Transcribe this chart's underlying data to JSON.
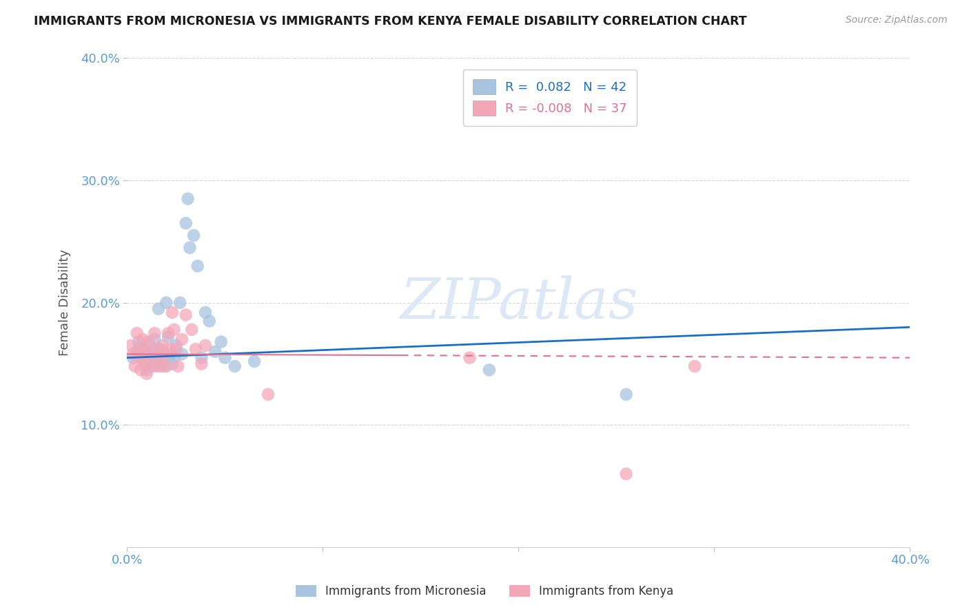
{
  "title": "IMMIGRANTS FROM MICRONESIA VS IMMIGRANTS FROM KENYA FEMALE DISABILITY CORRELATION CHART",
  "source_text": "Source: ZipAtlas.com",
  "ylabel": "Female Disability",
  "xlim": [
    0.0,
    0.4
  ],
  "ylim": [
    0.0,
    0.4
  ],
  "xticks": [
    0.0,
    0.1,
    0.2,
    0.3,
    0.4
  ],
  "yticks": [
    0.1,
    0.2,
    0.3,
    0.4
  ],
  "R_micronesia": 0.082,
  "N_micronesia": 42,
  "R_kenya": -0.008,
  "N_kenya": 37,
  "micronesia_color": "#a8c4e0",
  "kenya_color": "#f4a7b9",
  "trend_micronesia_color": "#1a6fc4",
  "trend_kenya_color": "#e07090",
  "legend_labels": [
    "Immigrants from Micronesia",
    "Immigrants from Kenya"
  ],
  "micronesia_scatter": [
    [
      0.003,
      0.155
    ],
    [
      0.005,
      0.16
    ],
    [
      0.006,
      0.168
    ],
    [
      0.007,
      0.155
    ],
    [
      0.008,
      0.162
    ],
    [
      0.009,
      0.15
    ],
    [
      0.01,
      0.158
    ],
    [
      0.01,
      0.145
    ],
    [
      0.011,
      0.165
    ],
    [
      0.012,
      0.155
    ],
    [
      0.012,
      0.148
    ],
    [
      0.013,
      0.16
    ],
    [
      0.014,
      0.17
    ],
    [
      0.015,
      0.155
    ],
    [
      0.015,
      0.148
    ],
    [
      0.016,
      0.195
    ],
    [
      0.017,
      0.162
    ],
    [
      0.018,
      0.155
    ],
    [
      0.019,
      0.148
    ],
    [
      0.02,
      0.2
    ],
    [
      0.021,
      0.172
    ],
    [
      0.022,
      0.158
    ],
    [
      0.023,
      0.15
    ],
    [
      0.024,
      0.155
    ],
    [
      0.025,
      0.165
    ],
    [
      0.027,
      0.2
    ],
    [
      0.028,
      0.158
    ],
    [
      0.03,
      0.265
    ],
    [
      0.031,
      0.285
    ],
    [
      0.032,
      0.245
    ],
    [
      0.034,
      0.255
    ],
    [
      0.036,
      0.23
    ],
    [
      0.038,
      0.155
    ],
    [
      0.04,
      0.192
    ],
    [
      0.042,
      0.185
    ],
    [
      0.045,
      0.16
    ],
    [
      0.048,
      0.168
    ],
    [
      0.05,
      0.155
    ],
    [
      0.055,
      0.148
    ],
    [
      0.065,
      0.152
    ],
    [
      0.185,
      0.145
    ],
    [
      0.255,
      0.125
    ]
  ],
  "kenya_scatter": [
    [
      0.002,
      0.165
    ],
    [
      0.003,
      0.158
    ],
    [
      0.004,
      0.148
    ],
    [
      0.005,
      0.175
    ],
    [
      0.006,
      0.162
    ],
    [
      0.007,
      0.155
    ],
    [
      0.007,
      0.145
    ],
    [
      0.008,
      0.17
    ],
    [
      0.009,
      0.16
    ],
    [
      0.01,
      0.15
    ],
    [
      0.01,
      0.142
    ],
    [
      0.011,
      0.168
    ],
    [
      0.012,
      0.158
    ],
    [
      0.013,
      0.148
    ],
    [
      0.014,
      0.175
    ],
    [
      0.015,
      0.162
    ],
    [
      0.016,
      0.155
    ],
    [
      0.017,
      0.148
    ],
    [
      0.018,
      0.165
    ],
    [
      0.019,
      0.158
    ],
    [
      0.02,
      0.148
    ],
    [
      0.021,
      0.175
    ],
    [
      0.022,
      0.162
    ],
    [
      0.023,
      0.192
    ],
    [
      0.024,
      0.178
    ],
    [
      0.025,
      0.162
    ],
    [
      0.026,
      0.148
    ],
    [
      0.028,
      0.17
    ],
    [
      0.03,
      0.19
    ],
    [
      0.033,
      0.178
    ],
    [
      0.035,
      0.162
    ],
    [
      0.038,
      0.15
    ],
    [
      0.04,
      0.165
    ],
    [
      0.072,
      0.125
    ],
    [
      0.175,
      0.155
    ],
    [
      0.255,
      0.06
    ],
    [
      0.29,
      0.148
    ]
  ],
  "background_color": "#ffffff",
  "grid_color": "#cccccc",
  "tick_label_color": "#5b9bd5",
  "watermark_text": "ZIPatlas",
  "watermark_color": "#dce8f5"
}
